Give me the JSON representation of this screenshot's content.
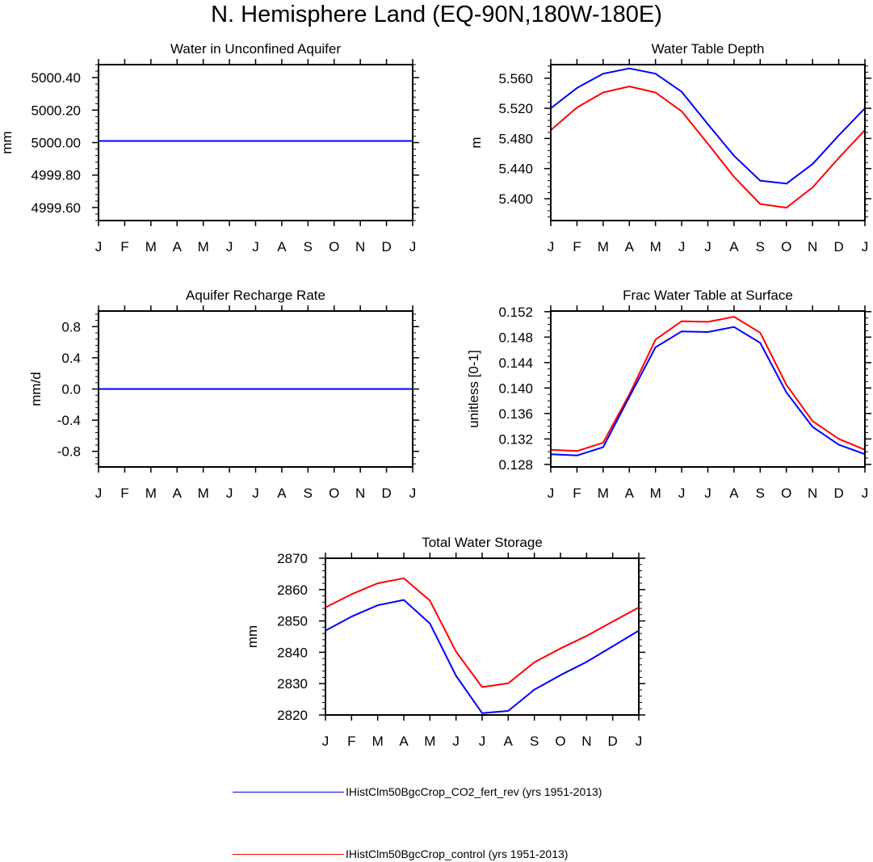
{
  "title": "N. Hemisphere Land (EQ-90N,180W-180E)",
  "colors": {
    "series_fert": "#0000ff",
    "series_control": "#ff0000"
  },
  "legend": [
    {
      "label": "IHistClm50BgcCrop_CO2_fert_rev (yrs 1951-2013)",
      "color": "#0000ff"
    },
    {
      "label": "IHistClm50BgcCrop_control (yrs 1951-2013)",
      "color": "#ff0000"
    }
  ],
  "chart_data": [
    {
      "type": "line",
      "title": "Water in Unconfined Aquifer",
      "ylabel": "mm",
      "categories": [
        "J",
        "F",
        "M",
        "A",
        "M",
        "J",
        "J",
        "A",
        "S",
        "O",
        "N",
        "D",
        "J"
      ],
      "ylim": [
        4999.52,
        5000.48
      ],
      "yticks": [
        4999.6,
        4999.8,
        5000.0,
        5000.2,
        5000.4
      ],
      "ytick_labels": [
        "4999.60",
        "4999.80",
        "5000.00",
        "5000.20",
        "5000.40"
      ],
      "series": [
        {
          "values": [
            5000.01,
            5000.01,
            5000.01,
            5000.01,
            5000.01,
            5000.01,
            5000.01,
            5000.01,
            5000.01,
            5000.01,
            5000.01,
            5000.01,
            5000.01
          ],
          "color": "#ff0000"
        },
        {
          "values": [
            5000.01,
            5000.01,
            5000.01,
            5000.01,
            5000.01,
            5000.01,
            5000.01,
            5000.01,
            5000.01,
            5000.01,
            5000.01,
            5000.01,
            5000.01
          ],
          "color": "#0000ff"
        }
      ]
    },
    {
      "type": "line",
      "title": "Water Table Depth",
      "ylabel": "m",
      "categories": [
        "J",
        "F",
        "M",
        "A",
        "M",
        "J",
        "J",
        "A",
        "S",
        "O",
        "N",
        "D",
        "J"
      ],
      "ylim": [
        5.371,
        5.578
      ],
      "yticks": [
        5.4,
        5.44,
        5.48,
        5.52,
        5.56
      ],
      "ytick_labels": [
        "5.400",
        "5.440",
        "5.480",
        "5.520",
        "5.560"
      ],
      "series": [
        {
          "values": [
            5.491,
            5.521,
            5.541,
            5.549,
            5.541,
            5.516,
            5.473,
            5.429,
            5.393,
            5.388,
            5.415,
            5.454,
            5.491
          ],
          "color": "#ff0000"
        },
        {
          "values": [
            5.52,
            5.547,
            5.566,
            5.573,
            5.566,
            5.542,
            5.499,
            5.457,
            5.424,
            5.42,
            5.446,
            5.484,
            5.52
          ],
          "color": "#0000ff"
        }
      ]
    },
    {
      "type": "line",
      "title": "Aquifer Recharge Rate",
      "ylabel": "mm/d",
      "categories": [
        "J",
        "F",
        "M",
        "A",
        "M",
        "J",
        "J",
        "A",
        "S",
        "O",
        "N",
        "D",
        "J"
      ],
      "ylim": [
        -1.0,
        1.0
      ],
      "yticks": [
        -0.8,
        -0.4,
        0.0,
        0.4,
        0.8
      ],
      "ytick_labels": [
        "-0.8",
        "-0.4",
        "0.0",
        "0.4",
        "0.8"
      ],
      "series": [
        {
          "values": [
            0,
            0,
            0,
            0,
            0,
            0,
            0,
            0,
            0,
            0,
            0,
            0,
            0
          ],
          "color": "#ff0000"
        },
        {
          "values": [
            0,
            0,
            0,
            0,
            0,
            0,
            0,
            0,
            0,
            0,
            0,
            0,
            0
          ],
          "color": "#0000ff"
        }
      ]
    },
    {
      "type": "line",
      "title": "Frac Water Table at Surface",
      "ylabel": "unitless [0-1]",
      "categories": [
        "J",
        "F",
        "M",
        "A",
        "M",
        "J",
        "J",
        "A",
        "S",
        "O",
        "N",
        "D",
        "J"
      ],
      "ylim": [
        0.1276,
        0.1521
      ],
      "yticks": [
        0.128,
        0.132,
        0.136,
        0.14,
        0.144,
        0.148,
        0.152
      ],
      "ytick_labels": [
        "0.128",
        "0.132",
        "0.136",
        "0.140",
        "0.144",
        "0.148",
        "0.152"
      ],
      "series": [
        {
          "values": [
            0.1303,
            0.1301,
            0.1314,
            0.139,
            0.1476,
            0.1505,
            0.1504,
            0.1512,
            0.1487,
            0.1405,
            0.1348,
            0.132,
            0.1303
          ],
          "color": "#ff0000"
        },
        {
          "values": [
            0.1296,
            0.1294,
            0.1307,
            0.1386,
            0.1464,
            0.1489,
            0.1488,
            0.1496,
            0.1471,
            0.1393,
            0.1339,
            0.1311,
            0.1296
          ],
          "color": "#0000ff"
        }
      ]
    },
    {
      "type": "line",
      "title": "Total Water Storage",
      "ylabel": "mm",
      "categories": [
        "J",
        "F",
        "M",
        "A",
        "M",
        "J",
        "J",
        "A",
        "S",
        "O",
        "N",
        "D",
        "J"
      ],
      "ylim": [
        2820,
        2870
      ],
      "yticks": [
        2820,
        2830,
        2840,
        2850,
        2860,
        2870
      ],
      "ytick_labels": [
        "2820",
        "2830",
        "2840",
        "2850",
        "2860",
        "2870"
      ],
      "series": [
        {
          "values": [
            2854.3,
            2858.5,
            2862.0,
            2863.6,
            2856.5,
            2840.2,
            2828.9,
            2830.1,
            2836.8,
            2841.2,
            2845.2,
            2849.8,
            2854.3
          ],
          "color": "#ff0000"
        },
        {
          "values": [
            2846.9,
            2851.4,
            2855.0,
            2856.7,
            2849.2,
            2832.5,
            2820.6,
            2821.3,
            2828.1,
            2832.7,
            2836.9,
            2841.9,
            2846.9
          ],
          "color": "#0000ff"
        }
      ]
    }
  ]
}
